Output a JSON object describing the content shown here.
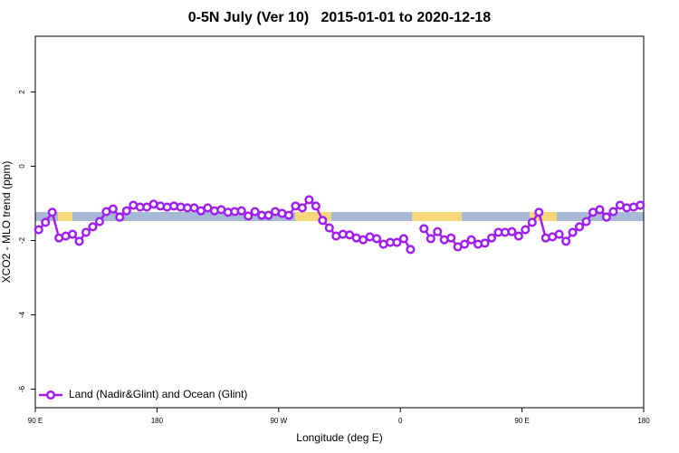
{
  "chart_data": {
    "type": "line",
    "title": "0-5N July (Ver 10)   2015-01-01 to 2020-12-18",
    "x_label": "Longitude (deg E)",
    "y_label": "XCO2 - MLO trend (ppm)",
    "xlim": [
      90,
      540
    ],
    "xticks": [
      {
        "value": 90,
        "label": "90 E"
      },
      180,
      {
        "value": 270,
        "label": "90 W"
      },
      {
        "value": 360,
        "label": "0"
      },
      {
        "value": 450,
        "label": "90 E"
      },
      {
        "value": 540,
        "label": "180"
      }
    ],
    "ylim": [
      -6.5,
      3.5
    ],
    "yticks": [
      2,
      0,
      -2,
      -4,
      -6
    ],
    "legend": "bottomleft",
    "x": [
      92.5,
      97.5,
      102.5,
      107.5,
      112.5,
      117.5,
      122.5,
      127.5,
      132.5,
      137.5,
      142.5,
      147.5,
      152.5,
      157.5,
      162.5,
      167.5,
      172.5,
      177.5,
      182.5,
      187.5,
      192.5,
      197.5,
      202.5,
      207.5,
      212.5,
      217.5,
      222.5,
      227.5,
      232.5,
      237.5,
      242.5,
      247.5,
      252.5,
      257.5,
      262.5,
      267.5,
      272.5,
      277.5,
      282.5,
      287.5,
      292.5,
      297.5,
      302.5,
      307.5,
      312.5,
      317.5,
      322.5,
      327.5,
      332.5,
      337.5,
      342.5,
      347.5,
      352.5,
      357.5,
      362.5,
      367.5,
      372.5,
      377.5,
      382.5,
      387.5,
      392.5,
      397.5,
      402.5,
      407.5,
      412.5,
      417.5,
      422.5,
      427.5,
      432.5,
      437.5,
      442.5,
      447.5,
      452.5,
      457.5,
      462.5,
      467.5,
      472.5,
      477.5,
      482.5,
      487.5,
      492.5,
      497.5,
      502.5,
      507.5,
      512.5,
      517.5,
      522.5,
      527.5,
      532.5,
      537.5
    ],
    "series": [
      {
        "name": "Land (Nadir&Glint) and Ocean (Glint)",
        "color": "#a020f0",
        "values": [
          -1.71,
          -1.51,
          -1.24,
          -1.93,
          -1.88,
          -1.83,
          -2.02,
          -1.78,
          -1.63,
          -1.49,
          -1.22,
          -1.15,
          -1.37,
          -1.2,
          -1.05,
          -1.1,
          -1.1,
          -1.02,
          -1.07,
          -1.1,
          -1.07,
          -1.1,
          -1.12,
          -1.12,
          -1.2,
          -1.12,
          -1.2,
          -1.17,
          -1.24,
          -1.22,
          -1.2,
          -1.34,
          -1.22,
          -1.32,
          -1.32,
          -1.22,
          -1.27,
          -1.32,
          -1.07,
          -1.12,
          -0.9,
          -1.07,
          -1.46,
          -1.66,
          -1.88,
          -1.83,
          -1.85,
          -1.93,
          -1.98,
          -1.9,
          -1.95,
          -2.1,
          -2.05,
          -2.05,
          -1.95,
          -2.24,
          null,
          -1.68,
          -1.95,
          -1.76,
          -1.98,
          -1.93,
          -2.17,
          -2.1,
          -1.98,
          -2.1,
          -2.07,
          -1.93,
          -1.78,
          -1.78,
          -1.76,
          -1.88,
          -1.71,
          -1.51,
          -1.24,
          -1.93,
          -1.9,
          -1.83,
          -2.02,
          -1.78,
          -1.63,
          -1.49,
          -1.24,
          -1.17,
          -1.37,
          -1.22,
          -1.05,
          -1.12,
          -1.1,
          -1.05
        ]
      }
    ]
  }
}
